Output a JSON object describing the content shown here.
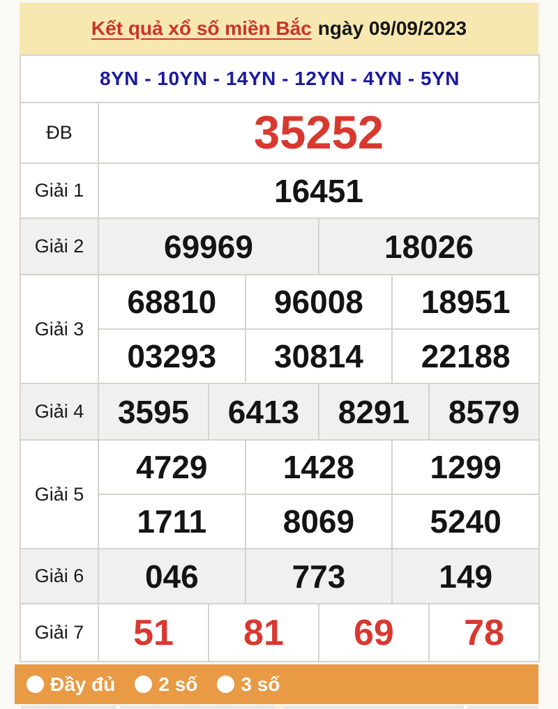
{
  "header": {
    "title": "Kết quả xổ số miền Bắc",
    "date_text": "ngày 09/09/2023"
  },
  "draw_codes": "8YN - 10YN - 14YN - 12YN - 4YN - 5YN",
  "results_table": {
    "rows": [
      {
        "label": "ĐB",
        "numbers": [
          "35252"
        ]
      },
      {
        "label": "Giải 1",
        "numbers": [
          "16451"
        ]
      },
      {
        "label": "Giải 2",
        "numbers": [
          "69969",
          "18026"
        ]
      },
      {
        "label": "Giải 3",
        "numbers": [
          "68810",
          "96008",
          "18951",
          "03293",
          "30814",
          "22188"
        ]
      },
      {
        "label": "Giải 4",
        "numbers": [
          "3595",
          "6413",
          "8291",
          "8579"
        ]
      },
      {
        "label": "Giải 5",
        "numbers": [
          "4729",
          "1428",
          "1299",
          "1711",
          "8069",
          "5240"
        ]
      },
      {
        "label": "Giải 6",
        "numbers": [
          "046",
          "773",
          "149"
        ]
      },
      {
        "label": "Giải 7",
        "numbers": [
          "51",
          "81",
          "69",
          "78"
        ]
      }
    ]
  },
  "filter_bar": {
    "options": [
      {
        "label": "Đầy đủ"
      },
      {
        "label": "2 số"
      },
      {
        "label": "3 số"
      }
    ]
  },
  "colors": {
    "title_bar_bg": "#F7E8B1",
    "title_red": "#CB332B",
    "draw_codes_blue": "#1B1B9E",
    "special_number_red": "#D9382F",
    "shaded_row_bg": "#F0F0EE",
    "filter_bar_orange": "#E89A45",
    "table_border": "#D4D3D0"
  }
}
